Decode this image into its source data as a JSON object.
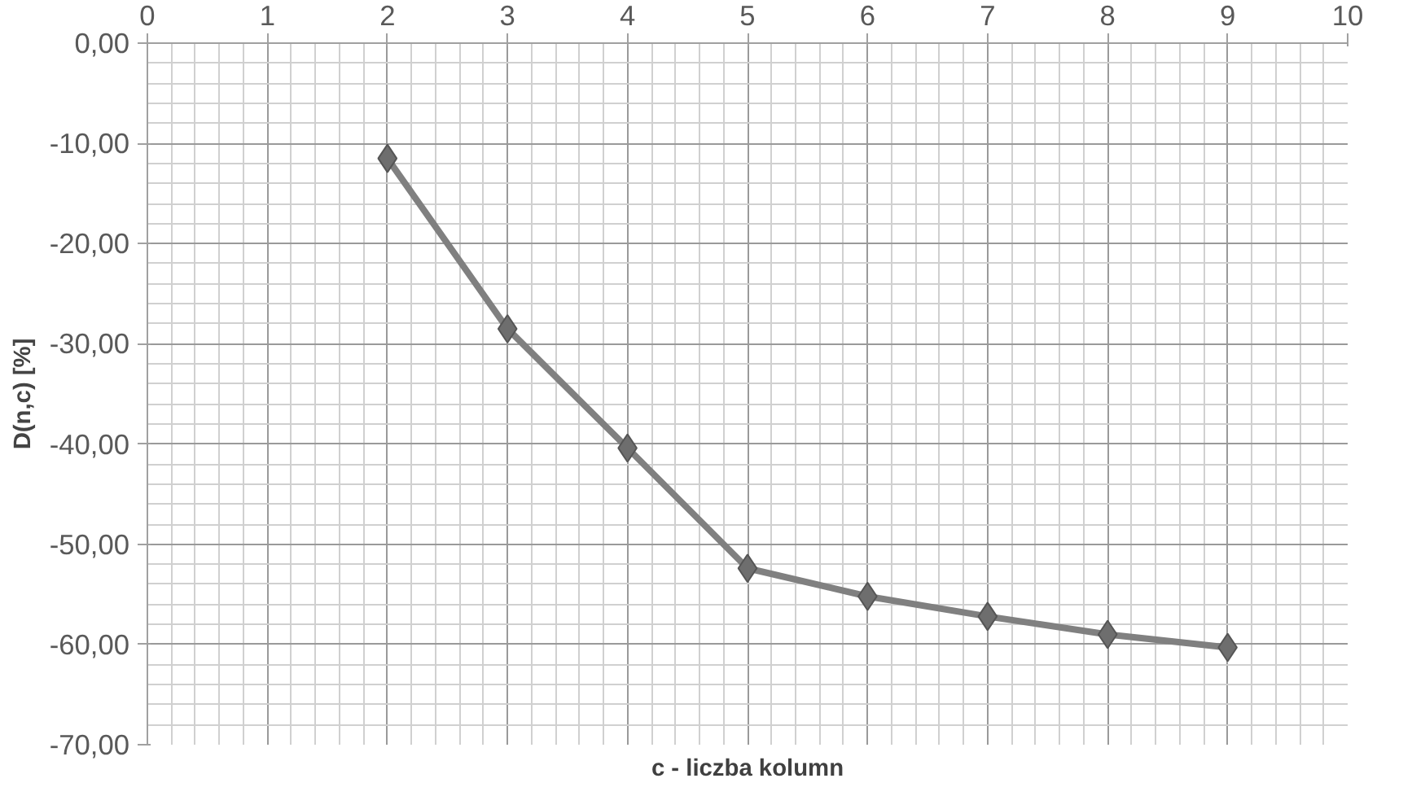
{
  "chart_data": {
    "type": "line",
    "xlabel": "c - liczba kolumn",
    "ylabel": "D(n,c) [%]",
    "x": [
      2,
      3,
      4,
      5,
      6,
      7,
      8,
      9
    ],
    "series": [
      {
        "color": "#808080",
        "values": [
          -11.5,
          -28.5,
          -40.4,
          -52.4,
          -55.2,
          -57.2,
          -59.0,
          -60.3
        ]
      }
    ],
    "xlim": [
      0,
      10
    ],
    "xticks": [
      0,
      1,
      2,
      3,
      4,
      5,
      6,
      7,
      8,
      9,
      10
    ],
    "ylim": [
      -70,
      0
    ],
    "yticks": [
      {
        "value": -70,
        "label": "-70,00"
      },
      {
        "value": -60,
        "label": "-60,00"
      },
      {
        "value": -50,
        "label": "-50,00"
      },
      {
        "value": -40,
        "label": "-40,00"
      },
      {
        "value": -30,
        "label": "-30,00"
      },
      {
        "value": -20,
        "label": "-20,00"
      },
      {
        "value": -10,
        "label": "-10,00"
      },
      {
        "value": 0,
        "label": "0,00"
      }
    ],
    "grid": true,
    "marker": "diamond",
    "line_style": "solid"
  }
}
